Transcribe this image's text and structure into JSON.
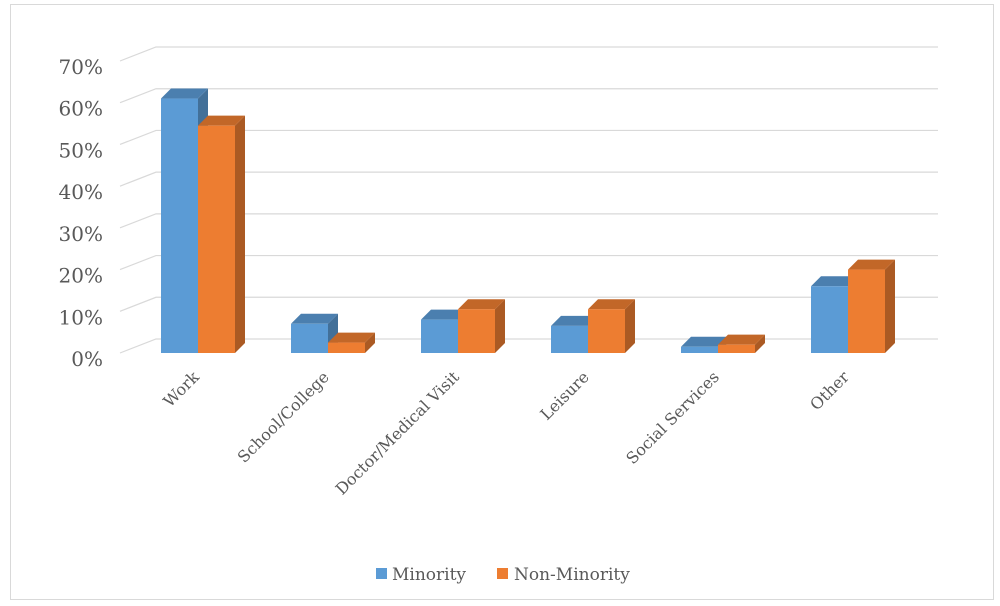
{
  "chart_data": {
    "type": "bar",
    "title": "",
    "xlabel": "",
    "ylabel": "",
    "ylim": [
      0,
      70
    ],
    "y_ticks": [
      "0%",
      "10%",
      "20%",
      "30%",
      "40%",
      "50%",
      "60%",
      "70%"
    ],
    "categories": [
      "Work",
      "School/College",
      "Doctor/Medical Visit",
      "Leisure",
      "Social Services",
      "Other"
    ],
    "series": [
      {
        "name": "Minority",
        "values": [
          61,
          7,
          8,
          6.5,
          1.5,
          16
        ],
        "color": "#5B9BD5"
      },
      {
        "name": "Non-Minority",
        "values": [
          54.5,
          2.5,
          10.5,
          10.5,
          2,
          20
        ],
        "color": "#ED7D31"
      }
    ],
    "grid": true,
    "legend_position": "bottom",
    "render_style": "3d-clustered-column"
  }
}
